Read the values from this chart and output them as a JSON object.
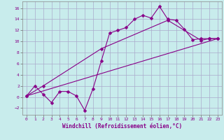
{
  "background_color": "#c8ecec",
  "grid_color": "#aaaacc",
  "line_color": "#880088",
  "xlim": [
    -0.5,
    23.5
  ],
  "ylim": [
    -3.2,
    17.2
  ],
  "xticks": [
    0,
    1,
    2,
    3,
    4,
    5,
    6,
    7,
    8,
    9,
    10,
    11,
    12,
    13,
    14,
    15,
    16,
    17,
    18,
    19,
    20,
    21,
    22,
    23
  ],
  "yticks": [
    -2,
    0,
    2,
    4,
    6,
    8,
    10,
    12,
    14,
    16
  ],
  "xlabel": "Windchill (Refroidissement éolien,°C)",
  "line1_x": [
    0,
    1,
    2,
    3,
    4,
    5,
    6,
    7,
    8,
    9,
    10,
    11,
    12,
    13,
    14,
    15,
    16,
    17,
    18,
    19,
    20,
    21,
    22,
    23
  ],
  "line1_y": [
    0.2,
    2.0,
    0.5,
    -1.0,
    1.0,
    1.0,
    0.2,
    -2.4,
    1.5,
    6.5,
    11.5,
    12.0,
    12.5,
    14.0,
    14.7,
    14.2,
    16.3,
    14.0,
    13.8,
    12.2,
    10.3,
    10.5,
    10.5,
    10.5
  ],
  "line2_x": [
    0,
    2,
    9,
    17,
    21,
    22,
    23
  ],
  "line2_y": [
    0.2,
    2.0,
    8.7,
    13.8,
    10.2,
    10.5,
    10.5
  ],
  "line3_x": [
    0,
    23
  ],
  "line3_y": [
    0.2,
    10.5
  ],
  "marker": "D",
  "markersize": 2.5,
  "linewidth": 0.8,
  "tick_fontsize": 4.5,
  "xlabel_fontsize": 5.5
}
